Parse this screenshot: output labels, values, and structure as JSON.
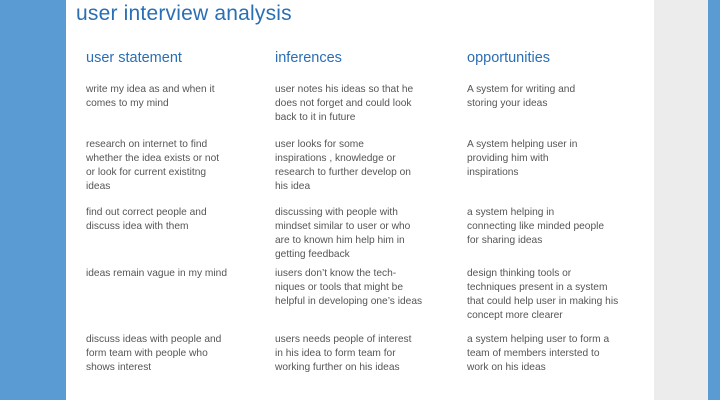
{
  "title": "user interview analysis",
  "columns": [
    "user statement",
    "inferences",
    "opportunities"
  ],
  "rows": [
    {
      "statement": "write my idea as and  when it\ncomes to my mind",
      "inference": "user notes his ideas so that he\ndoes not forget and could look\nback to it in future",
      "opportunity": "A system for writing and\nstoring your ideas"
    },
    {
      "statement": "research on internet to find\nwhether the idea exists or not\nor look for current existitng\nideas",
      "inference": "user looks for some\ninspirations , knowledge or\nresearch to further develop on\nhis idea",
      "opportunity": "A system helping user in\nproviding him with\ninspirations"
    },
    {
      "statement": "find out correct people and\ndiscuss idea with them",
      "inference": "discussing with people with\nmindset similar to user or who\nare to known him help him in\ngetting feedback",
      "opportunity": "a system helping in\nconnecting like minded people\nfor sharing ideas"
    },
    {
      "statement": "ideas remain vague in my mind",
      "inference": "iusers don’t know the tech-\nniques or tools that might be\nhelpful in developing one’s ideas",
      "opportunity": "design thinking tools or\ntechniques present in a system\nthat could help user in making his\nconcept more clearer"
    },
    {
      "statement": "discuss ideas with people and\nform team with people who\nshows interest",
      "inference": "users needs people of interest\nin his idea to form team for\nworking further on his ideas",
      "opportunity": "a system helping user to form a\nteam of members intersted to\nwork on his ideas"
    }
  ]
}
